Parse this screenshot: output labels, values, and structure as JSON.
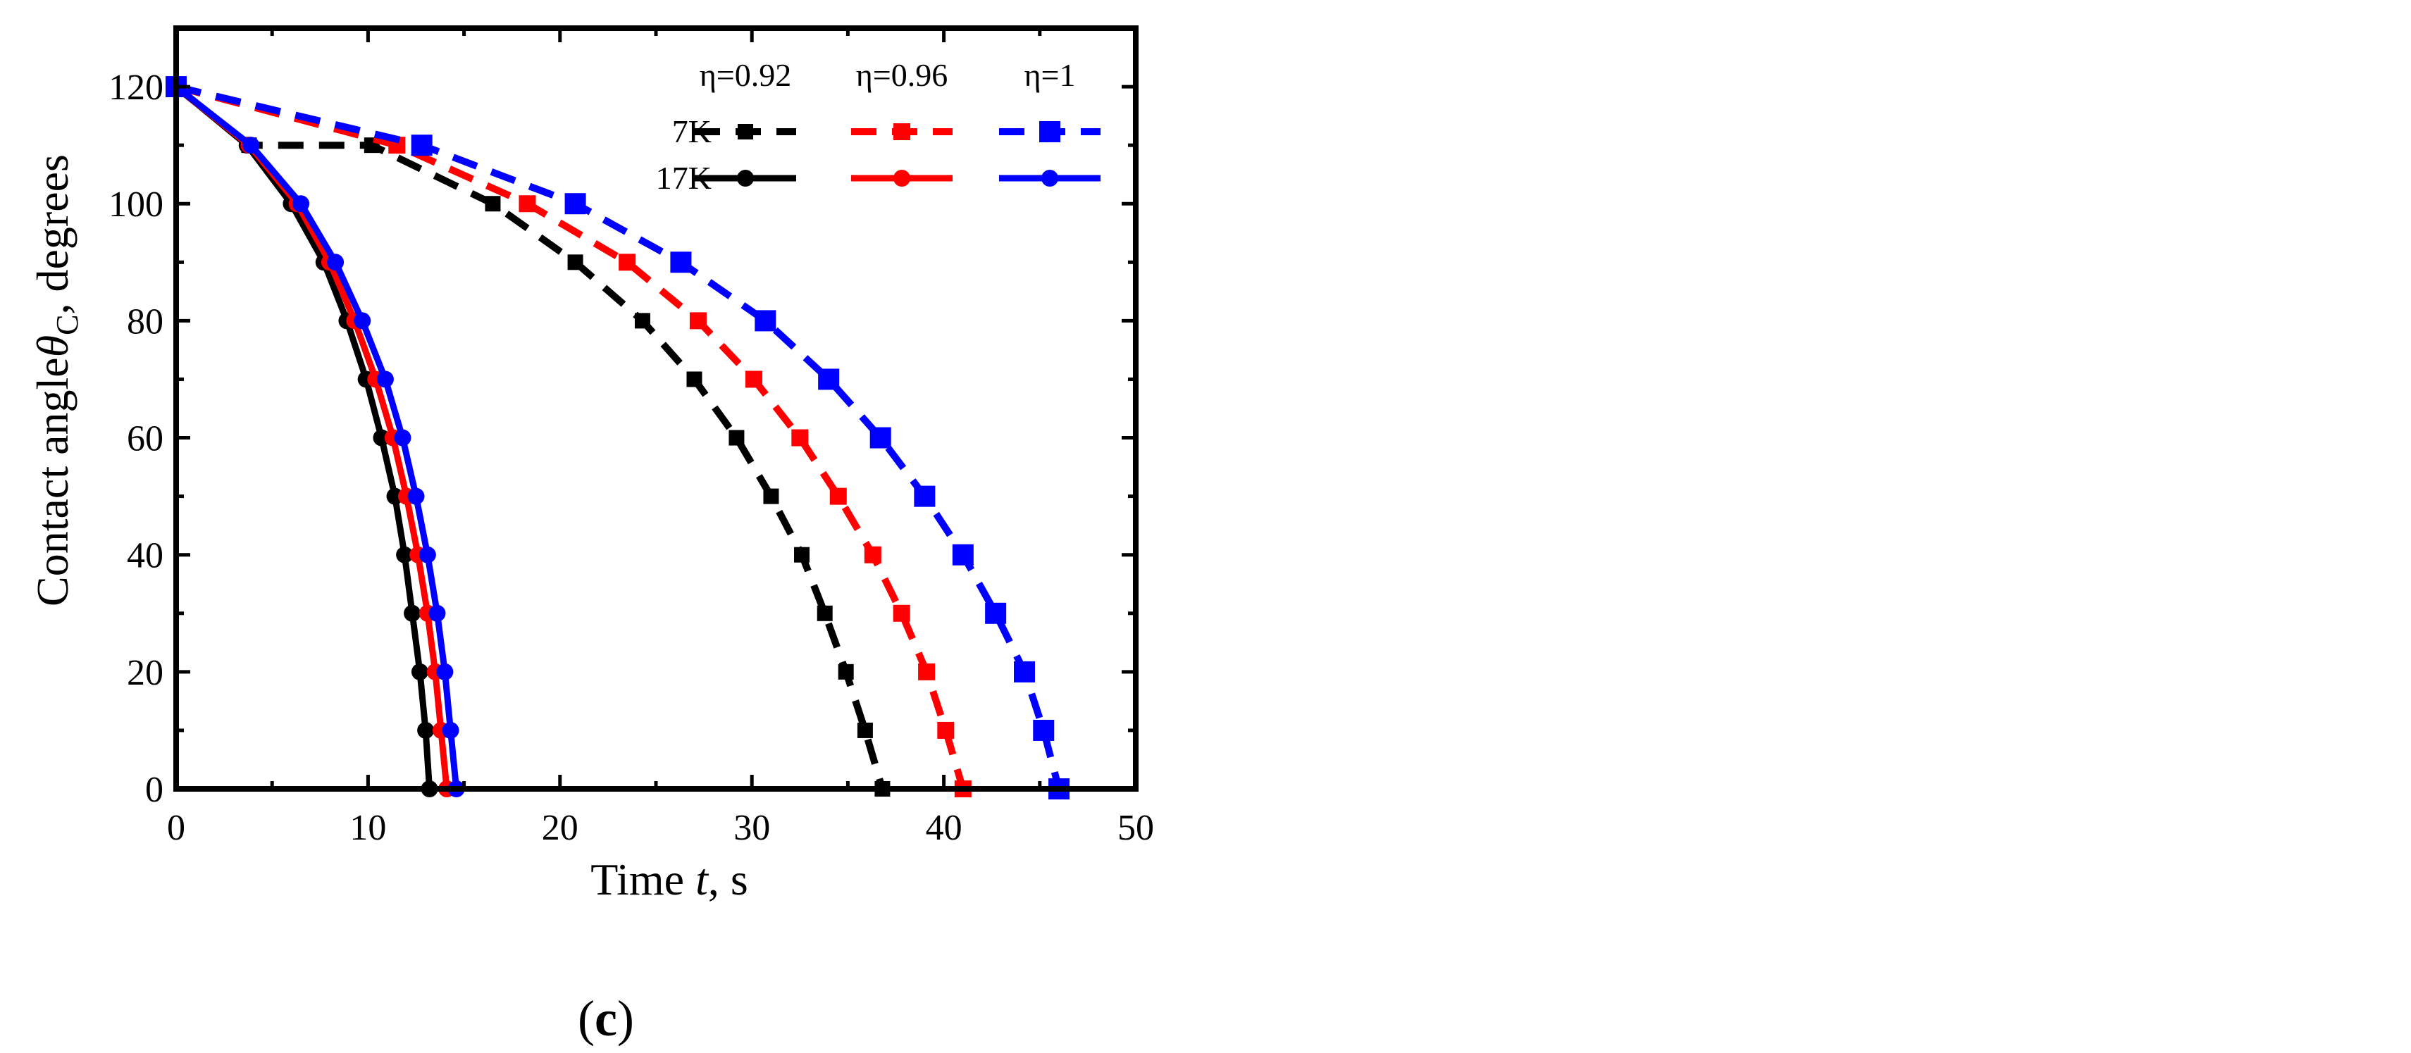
{
  "chart_data": {
    "type": "line",
    "xlabel": {
      "main": "Time ",
      "italic": "t",
      "tail": ", s"
    },
    "ylabel": {
      "main": "Contact angle",
      "symbol": "θ",
      "sub": "C",
      "tail": ", degrees"
    },
    "xlim": [
      0,
      50
    ],
    "ylim": [
      0,
      130
    ],
    "x_ticks": [
      0,
      10,
      20,
      30,
      40,
      50
    ],
    "y_ticks": [
      0,
      20,
      40,
      60,
      80,
      100,
      120
    ],
    "grid": false,
    "legend": {
      "placement": "top-right",
      "columns": [
        "η=0.92",
        "η=0.96",
        "η=1"
      ],
      "rows": [
        "7K",
        "17K"
      ]
    },
    "panel_label": {
      "open": "(",
      "letter": "c",
      "close": ")"
    },
    "series": [
      {
        "group": "7K",
        "eta": "η=0.92",
        "color": "#000000",
        "dash": true,
        "marker": "square",
        "x": [
          0,
          3.8,
          10.2,
          16.5,
          20.8,
          24.3,
          27,
          29.2,
          31,
          32.6,
          33.8,
          34.9,
          35.9,
          36.8
        ],
        "y": [
          120,
          110,
          110,
          100,
          90,
          80,
          70,
          60,
          50,
          40,
          30,
          20,
          10,
          0
        ]
      },
      {
        "group": "7K",
        "eta": "η=0.96",
        "color": "#ff0000",
        "dash": true,
        "marker": "square",
        "x": [
          0,
          11.5,
          18.3,
          23.5,
          27.2,
          30.1,
          32.5,
          34.5,
          36.3,
          37.8,
          39.1,
          40.1,
          41
        ],
        "y": [
          120,
          110,
          100,
          90,
          80,
          70,
          60,
          50,
          40,
          30,
          20,
          10,
          0
        ]
      },
      {
        "group": "7K",
        "eta": "η=1",
        "color": "#0000ff",
        "dash": true,
        "marker": "square",
        "x": [
          0,
          12.8,
          20.8,
          26.3,
          30.7,
          34,
          36.7,
          39,
          41,
          42.7,
          44.2,
          45.2,
          46
        ],
        "y": [
          120,
          110,
          100,
          90,
          80,
          70,
          60,
          50,
          40,
          30,
          20,
          10,
          0
        ]
      },
      {
        "group": "17K",
        "eta": "η=0.92",
        "color": "#000000",
        "dash": false,
        "marker": "circle",
        "x": [
          0,
          3.7,
          6,
          7.7,
          8.9,
          9.9,
          10.7,
          11.4,
          11.9,
          12.3,
          12.7,
          13,
          13.2
        ],
        "y": [
          120,
          110,
          100,
          90,
          80,
          70,
          60,
          50,
          40,
          30,
          20,
          10,
          0
        ]
      },
      {
        "group": "17K",
        "eta": "η=0.96",
        "color": "#ff0000",
        "dash": false,
        "marker": "circle",
        "x": [
          0,
          3.8,
          6.3,
          8,
          9.3,
          10.4,
          11.3,
          12,
          12.6,
          13.1,
          13.5,
          13.8,
          14.1
        ],
        "y": [
          120,
          110,
          100,
          90,
          80,
          70,
          60,
          50,
          40,
          30,
          20,
          10,
          0
        ]
      },
      {
        "group": "17K",
        "eta": "η=1",
        "color": "#0000ff",
        "dash": false,
        "marker": "circle",
        "x": [
          0,
          3.9,
          6.5,
          8.3,
          9.7,
          10.9,
          11.8,
          12.5,
          13.1,
          13.6,
          14,
          14.3,
          14.6
        ],
        "y": [
          120,
          110,
          100,
          90,
          80,
          70,
          60,
          50,
          40,
          30,
          20,
          10,
          0
        ]
      }
    ]
  }
}
